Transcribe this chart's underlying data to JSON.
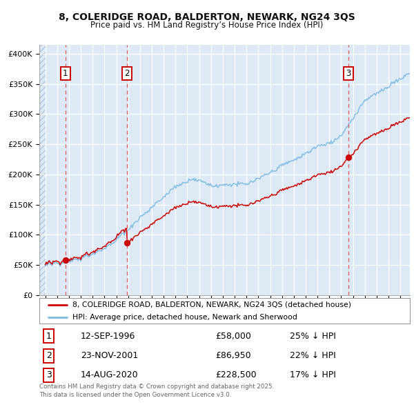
{
  "title_line1": "8, COLERIDGE ROAD, BALDERTON, NEWARK, NG24 3QS",
  "title_line2": "Price paid vs. HM Land Registry’s House Price Index (HPI)",
  "ylabel_ticks": [
    "£0",
    "£50K",
    "£100K",
    "£150K",
    "£200K",
    "£250K",
    "£300K",
    "£350K",
    "£400K"
  ],
  "ytick_values": [
    0,
    50000,
    100000,
    150000,
    200000,
    250000,
    300000,
    350000,
    400000
  ],
  "ylim": [
    0,
    415000
  ],
  "xlim_start": 1994.5,
  "xlim_end": 2025.8,
  "sale_dates": [
    1996.71,
    2001.9,
    2020.62
  ],
  "sale_prices": [
    58000,
    86950,
    228500
  ],
  "sale_labels": [
    "1",
    "2",
    "3"
  ],
  "hpi_color": "#7ab8e0",
  "sale_color": "#cc0000",
  "dashed_line_color": "#e05050",
  "background_color": "#ddeaf5",
  "grid_color": "#ffffff",
  "legend_line1": "8, COLERIDGE ROAD, BALDERTON, NEWARK, NG24 3QS (detached house)",
  "legend_line2": "HPI: Average price, detached house, Newark and Sherwood",
  "table_data": [
    [
      "1",
      "12-SEP-1996",
      "£58,000",
      "25% ↓ HPI"
    ],
    [
      "2",
      "23-NOV-2001",
      "£86,950",
      "22% ↓ HPI"
    ],
    [
      "3",
      "14-AUG-2020",
      "£228,500",
      "17% ↓ HPI"
    ]
  ],
  "footnote": "Contains HM Land Registry data © Crown copyright and database right 2025.\nThis data is licensed under the Open Government Licence v3.0."
}
